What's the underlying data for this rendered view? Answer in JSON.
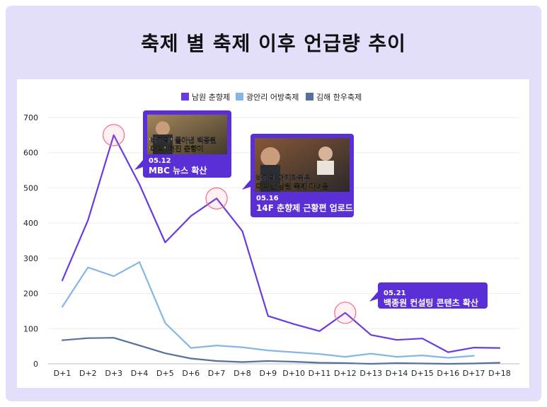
{
  "title": "축제 별 축제 이후 언급량 추이",
  "chart_data": {
    "type": "line",
    "title": "축제 별 축제 이후 언급량 추이",
    "xlabel": "",
    "ylabel": "",
    "ylim": [
      0,
      700
    ],
    "yticks": [
      0,
      100,
      200,
      300,
      400,
      500,
      600,
      700
    ],
    "grid": true,
    "legend": "top-center",
    "categories": [
      "D+1",
      "D+2",
      "D+3",
      "D+4",
      "D+5",
      "D+6",
      "D+7",
      "D+8",
      "D+9",
      "D+10",
      "D+11",
      "D+12",
      "D+13",
      "D+14",
      "D+15",
      "D+16",
      "D+17",
      "D+18"
    ],
    "series": [
      {
        "name": "남원 춘향제",
        "color": "#6a3be0",
        "values": [
          237,
          408,
          650,
          510,
          345,
          420,
          470,
          377,
          136,
          113,
          93,
          145,
          82,
          68,
          72,
          33,
          46,
          45
        ]
      },
      {
        "name": "광안리 어방축제",
        "color": "#84b6e6",
        "values": [
          162,
          274,
          249,
          289,
          116,
          45,
          52,
          47,
          38,
          33,
          28,
          20,
          29,
          20,
          24,
          17,
          23,
          null
        ]
      },
      {
        "name": "김해 한우축제",
        "color": "#56709e",
        "values": [
          67,
          73,
          74,
          52,
          30,
          15,
          8,
          5,
          8,
          6,
          3,
          2,
          0,
          2,
          1,
          0,
          1,
          3
        ]
      }
    ],
    "annotations": [
      {
        "date": "05.12",
        "text": "MBC 뉴스 확산",
        "x_index": 2,
        "series": 0,
        "thumb_lines": [
          "'바가지' 몰아낸 백종원",
          "'대박' 터진 춘향이"
        ]
      },
      {
        "date": "05.16",
        "text": "14F 춘향제 근황편 업로드",
        "x_index": 6,
        "series": 0,
        "thumb_lines": [
          "바가지 아리와위유",
          "대박난 남원 축제 다녀옴"
        ]
      },
      {
        "date": "05.21",
        "text": "백종원 컨설팅 콘텐츠 확산",
        "x_index": 11,
        "series": 0,
        "thumb_lines": []
      }
    ]
  }
}
